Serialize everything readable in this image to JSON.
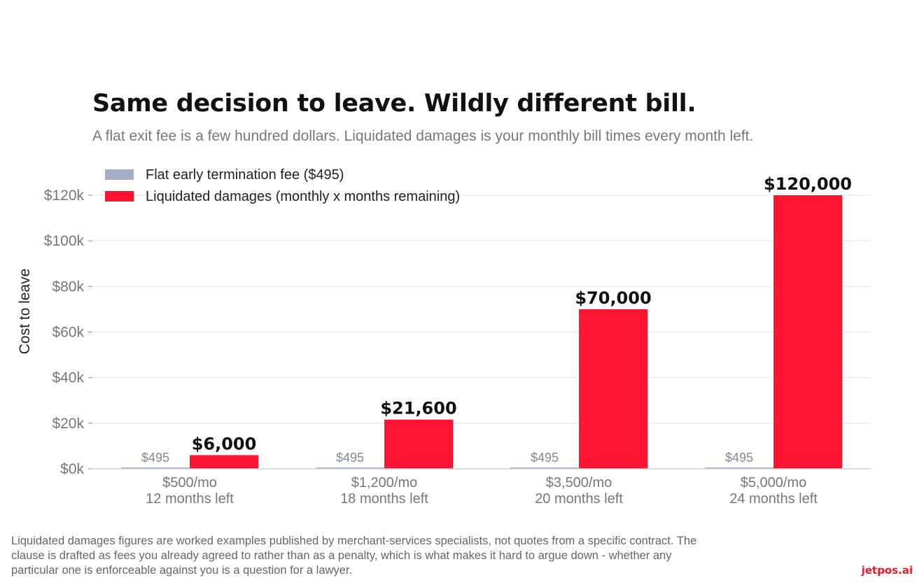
{
  "brand": {
    "name": "jetpos.ai",
    "color": "#e8192c"
  },
  "chart_data": {
    "type": "bar",
    "title": "Same decision to leave. Wildly different bill.",
    "subtitle": "A flat exit fee is a few hundred dollars. Liquidated damages is your monthly bill times every month left.",
    "ylabel": "Cost to leave",
    "xlabel": "",
    "ylim": [
      0,
      125000
    ],
    "yticks": [
      0,
      20000,
      40000,
      60000,
      80000,
      100000,
      120000
    ],
    "ytick_labels": [
      "$0k",
      "$20k",
      "$40k",
      "$60k",
      "$80k",
      "$100k",
      "$120k"
    ],
    "grid": true,
    "legend_position": "top-left",
    "categories": [
      [
        "$500/mo",
        "12 months left"
      ],
      [
        "$1,200/mo",
        "18 months left"
      ],
      [
        "$3,500/mo",
        "20 months left"
      ],
      [
        "$5,000/mo",
        "24 months left"
      ]
    ],
    "series": [
      {
        "name": "Flat early termination fee ($495)",
        "color": "#a3afc4",
        "values": [
          495,
          495,
          495,
          495
        ],
        "labels": [
          "$495",
          "$495",
          "$495",
          "$495"
        ],
        "label_style": "muted"
      },
      {
        "name": "Liquidated damages (monthly x months remaining)",
        "color": "#ff1432",
        "values": [
          6000,
          21600,
          70000,
          120000
        ],
        "labels": [
          "$6,000",
          "$21,600",
          "$70,000",
          "$120,000"
        ],
        "label_style": "bold"
      }
    ]
  },
  "footnote": "Liquidated damages figures are worked examples published by merchant-services specialists, not quotes from a specific contract. The clause is drafted as fees you already agreed to rather than as a penalty, which is what makes it hard to argue down - whether any particular one is enforceable against you is a question for a lawyer."
}
